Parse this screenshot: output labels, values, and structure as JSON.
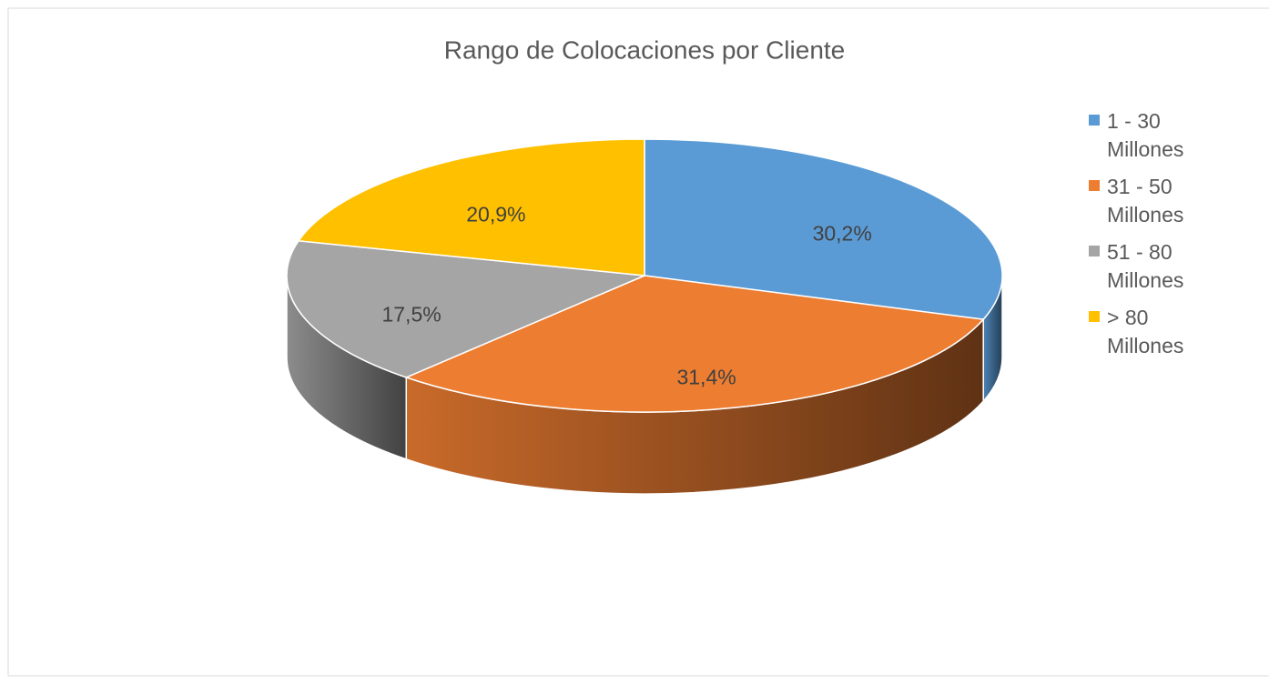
{
  "chart_data": {
    "type": "pie",
    "title": "Rango de Colocaciones por Cliente",
    "categories": [
      "1 - 30 Millones",
      "31 - 50 Millones",
      "51 - 80 Millones",
      "> 80 Millones"
    ],
    "values": [
      30.2,
      31.4,
      17.5,
      20.9
    ],
    "value_labels": [
      "30,2%",
      "31,4%",
      "17,5%",
      "20,9%"
    ],
    "colors": [
      "#5b9bd5",
      "#ed7d31",
      "#a5a5a5",
      "#ffc000"
    ],
    "legend": "right"
  }
}
